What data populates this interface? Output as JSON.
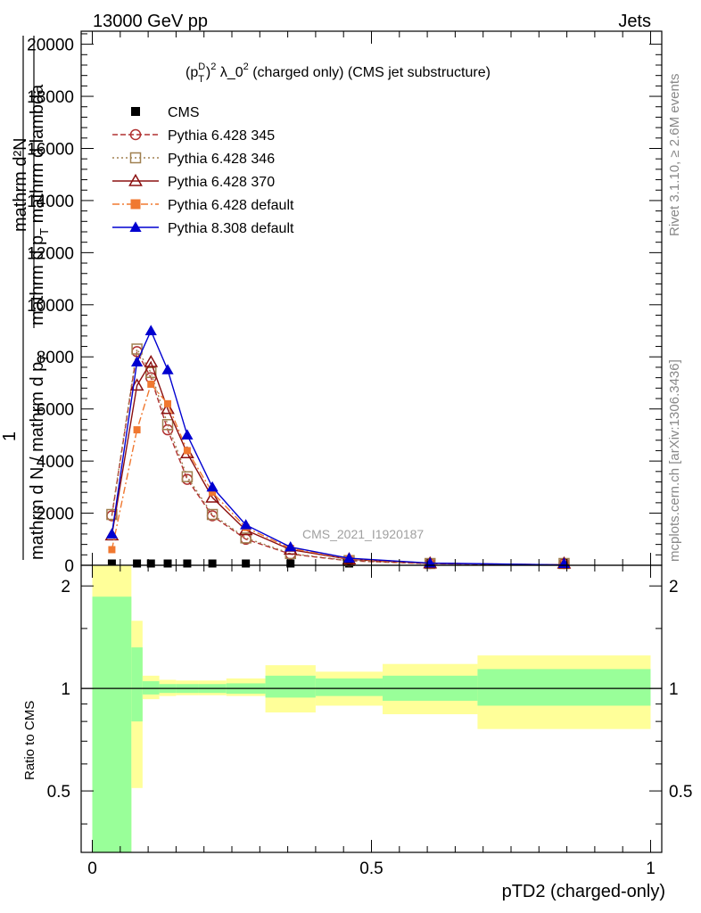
{
  "header": {
    "left": "13000 GeV pp",
    "right": "Jets"
  },
  "side_labels": {
    "rivet": "Rivet 3.1.10, ≥ 2.6M events",
    "mcplots": "mcplots.cern.ch [arXiv:1306.3436]"
  },
  "chart_data": [
    {
      "type": "line",
      "title_parts": {
        "a": "(p",
        "sup": "D",
        "sub": "T",
        "b": ")",
        "sq": "2",
        "c": " λ_0",
        "sq2": "2",
        "d": " (charged only) (CMS jet substructure)"
      },
      "ylabel_top": "mathrm d²N",
      "ylabel_bottom": "mathrm d p",
      "ylabel_sub": "T",
      "ylabel_tail": " mathrm d lambda",
      "ylabel_frac_one": "1",
      "ylabel_frac_den": "mathrm d N / mathrm d p",
      "ylabel_frac_sub": "T",
      "watermark": "CMS_2021_I1920187",
      "xlim": [
        -0.02,
        1.02
      ],
      "ylim": [
        0,
        20500
      ],
      "yticks": [
        0,
        2000,
        4000,
        6000,
        8000,
        10000,
        12000,
        14000,
        16000,
        18000,
        20000
      ],
      "ytick_labels": [
        "0",
        "2000",
        "4000",
        "6000",
        "8000",
        "10000",
        "12000",
        "14000",
        "16000",
        "18000",
        "20000"
      ],
      "legend_position": "top-left",
      "series": [
        {
          "name": "CMS",
          "color": "#000000",
          "marker": "filled-square",
          "line": "none",
          "x": [
            0.035,
            0.08,
            0.105,
            0.135,
            0.17,
            0.215,
            0.275,
            0.355,
            0.46,
            0.605,
            0.845
          ],
          "y": [
            40,
            40,
            40,
            40,
            40,
            40,
            30,
            20,
            10,
            5,
            2
          ]
        },
        {
          "name": "Pythia 6.428 345",
          "color": "#b03030",
          "marker": "open-circle",
          "line": "dashed",
          "x": [
            0.035,
            0.08,
            0.105,
            0.135,
            0.17,
            0.215,
            0.275,
            0.355,
            0.46,
            0.605,
            0.845
          ],
          "y": [
            1900,
            8200,
            7200,
            5200,
            3300,
            1900,
            1000,
            430,
            170,
            60,
            15
          ]
        },
        {
          "name": "Pythia 6.428 346",
          "color": "#a08050",
          "marker": "open-square",
          "line": "dotted",
          "x": [
            0.035,
            0.08,
            0.105,
            0.135,
            0.17,
            0.215,
            0.275,
            0.355,
            0.46,
            0.605,
            0.845
          ],
          "y": [
            1950,
            8300,
            7400,
            5400,
            3400,
            1950,
            1050,
            450,
            180,
            65,
            15
          ]
        },
        {
          "name": "Pythia 6.428 370",
          "color": "#8b1010",
          "marker": "open-triangle",
          "line": "solid",
          "x": [
            0.035,
            0.08,
            0.105,
            0.135,
            0.17,
            0.215,
            0.275,
            0.355,
            0.46,
            0.605,
            0.845
          ],
          "y": [
            1150,
            6900,
            7800,
            6000,
            4300,
            2600,
            1350,
            600,
            230,
            75,
            15
          ]
        },
        {
          "name": "Pythia 6.428 default",
          "color": "#f07830",
          "marker": "filled-square",
          "line": "dashdot",
          "x": [
            0.035,
            0.08,
            0.105,
            0.135,
            0.17,
            0.215,
            0.275,
            0.355,
            0.46,
            0.605,
            0.845
          ],
          "y": [
            600,
            5200,
            6950,
            6200,
            4400,
            2800,
            1450,
            650,
            250,
            80,
            15
          ]
        },
        {
          "name": "Pythia 8.308 default",
          "color": "#0000d0",
          "marker": "filled-triangle",
          "line": "solid",
          "x": [
            0.035,
            0.08,
            0.105,
            0.135,
            0.17,
            0.215,
            0.275,
            0.355,
            0.46,
            0.605,
            0.845
          ],
          "y": [
            1200,
            7800,
            9000,
            7500,
            5000,
            3000,
            1550,
            700,
            270,
            85,
            15
          ]
        }
      ]
    },
    {
      "type": "area",
      "ylabel": "Ratio to CMS",
      "xlabel": "pTD2 (charged-only)",
      "xlim": [
        -0.02,
        1.02
      ],
      "ylim": [
        0.33,
        2.3
      ],
      "yticks": [
        0.5,
        1,
        2
      ],
      "ytick_labels": [
        "0.5",
        "1",
        "2"
      ],
      "xticks": [
        0,
        0.5,
        1
      ],
      "xtick_labels": [
        "0",
        "0.5",
        "1"
      ],
      "reference_line": 1,
      "bins": [
        {
          "x0": 0.0,
          "x1": 0.07,
          "inner_lo": 0.33,
          "inner_hi": 1.86,
          "outer_lo": 0.33,
          "outer_hi": 2.3
        },
        {
          "x0": 0.07,
          "x1": 0.09,
          "inner_lo": 0.8,
          "inner_hi": 1.32,
          "outer_lo": 0.51,
          "outer_hi": 1.58
        },
        {
          "x0": 0.09,
          "x1": 0.12,
          "inner_lo": 0.96,
          "inner_hi": 1.05,
          "outer_lo": 0.93,
          "outer_hi": 1.09
        },
        {
          "x0": 0.12,
          "x1": 0.15,
          "inner_lo": 0.97,
          "inner_hi": 1.03,
          "outer_lo": 0.95,
          "outer_hi": 1.06
        },
        {
          "x0": 0.15,
          "x1": 0.19,
          "inner_lo": 0.97,
          "inner_hi": 1.03,
          "outer_lo": 0.955,
          "outer_hi": 1.055
        },
        {
          "x0": 0.19,
          "x1": 0.24,
          "inner_lo": 0.97,
          "inner_hi": 1.03,
          "outer_lo": 0.955,
          "outer_hi": 1.055
        },
        {
          "x0": 0.24,
          "x1": 0.31,
          "inner_lo": 0.965,
          "inner_hi": 1.035,
          "outer_lo": 0.95,
          "outer_hi": 1.07
        },
        {
          "x0": 0.31,
          "x1": 0.4,
          "inner_lo": 0.94,
          "inner_hi": 1.09,
          "outer_lo": 0.85,
          "outer_hi": 1.17
        },
        {
          "x0": 0.4,
          "x1": 0.52,
          "inner_lo": 0.95,
          "inner_hi": 1.07,
          "outer_lo": 0.89,
          "outer_hi": 1.12
        },
        {
          "x0": 0.52,
          "x1": 0.69,
          "inner_lo": 0.92,
          "inner_hi": 1.09,
          "outer_lo": 0.84,
          "outer_hi": 1.18
        },
        {
          "x0": 0.69,
          "x1": 1.0,
          "inner_lo": 0.89,
          "inner_hi": 1.14,
          "outer_lo": 0.76,
          "outer_hi": 1.25
        }
      ],
      "band_colors": {
        "inner": "#99ff99",
        "outer": "#ffff99"
      }
    }
  ]
}
